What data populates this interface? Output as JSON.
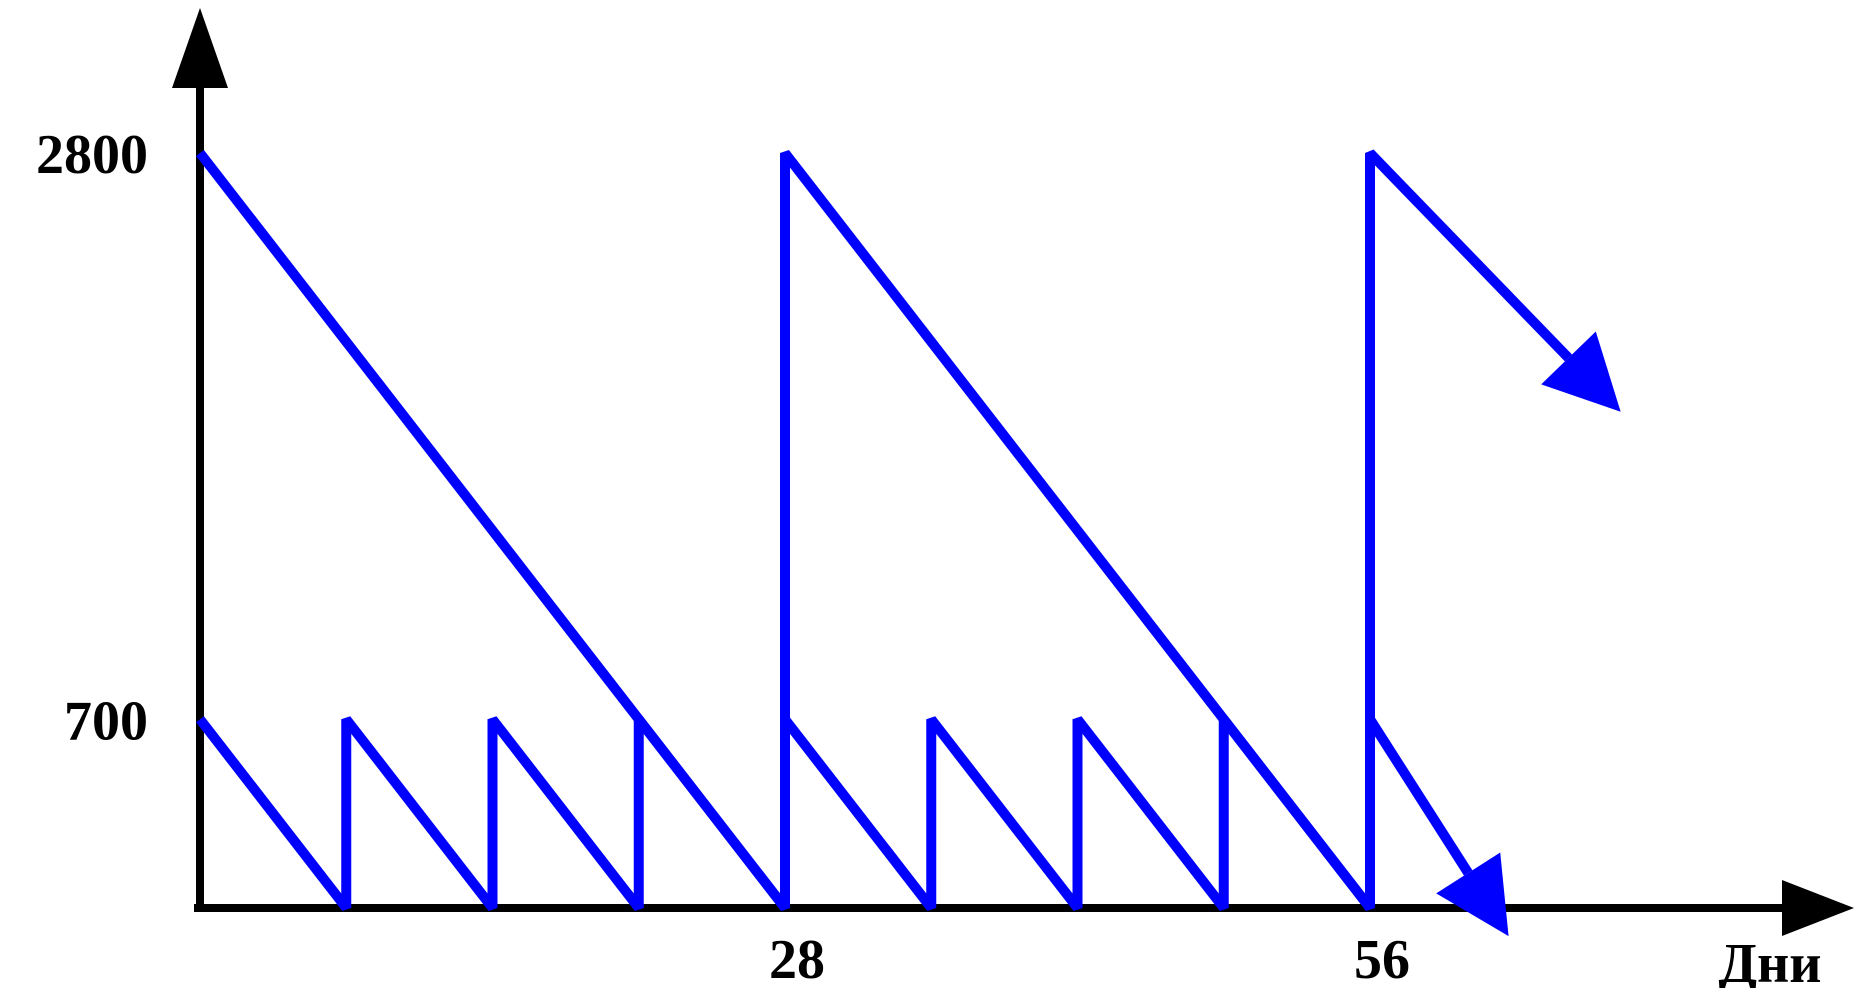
{
  "chart_data": {
    "type": "line",
    "title": "",
    "xlabel": "Дни",
    "ylabel": "",
    "xlim": [
      0,
      80
    ],
    "ylim": [
      0,
      3000
    ],
    "x_ticks": [
      {
        "value": 28,
        "label": "28"
      },
      {
        "value": 56,
        "label": "56"
      }
    ],
    "y_ticks": [
      {
        "value": 700,
        "label": "700"
      },
      {
        "value": 2800,
        "label": "2800"
      }
    ],
    "grid": false,
    "legend": "none",
    "colors": {
      "series": "#0000ff",
      "axes": "#000000"
    },
    "series": [
      {
        "values_xy": [
          [
            0,
            2800
          ],
          [
            28,
            0
          ],
          [
            28,
            2800
          ],
          [
            56,
            0
          ],
          [
            56,
            2800
          ],
          [
            65.5,
            2040
          ]
        ],
        "continues_arrow": true
      },
      {
        "values_xy": [
          [
            0,
            700
          ],
          [
            7,
            0
          ],
          [
            7,
            700
          ],
          [
            14,
            0
          ],
          [
            14,
            700
          ],
          [
            21,
            0
          ],
          [
            21,
            700
          ],
          [
            28,
            0
          ],
          [
            28,
            700
          ],
          [
            35,
            0
          ],
          [
            35,
            700
          ],
          [
            42,
            0
          ],
          [
            42,
            700
          ],
          [
            49,
            0
          ],
          [
            49,
            700
          ],
          [
            56,
            0
          ],
          [
            56,
            700
          ],
          [
            60.7,
            130
          ]
        ],
        "continues_arrow": true
      }
    ]
  }
}
